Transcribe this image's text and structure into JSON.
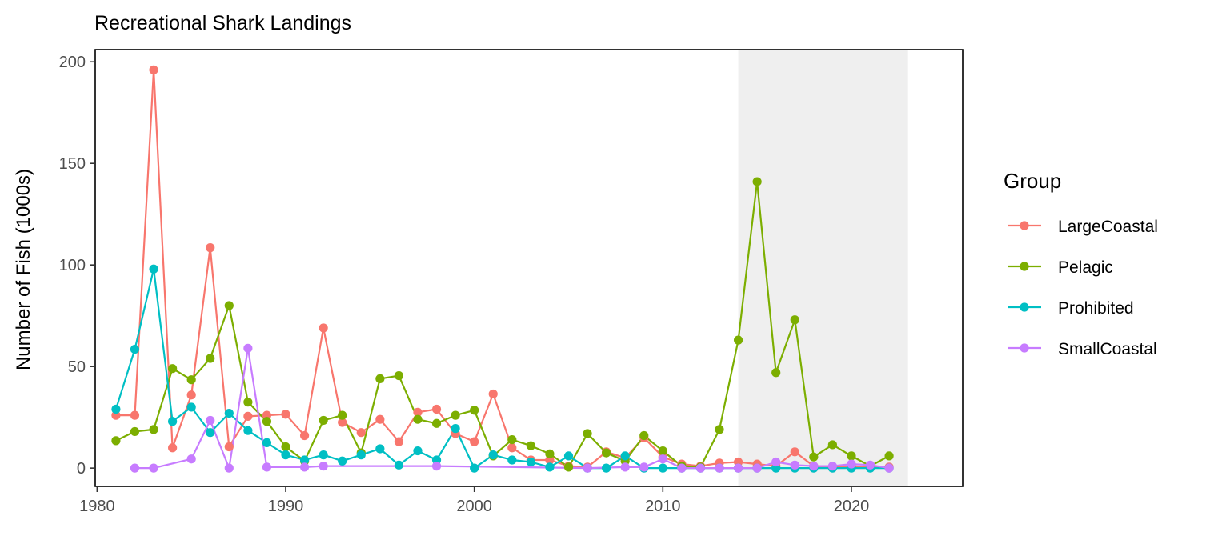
{
  "chart_data": {
    "type": "line",
    "title": "Recreational Shark Landings",
    "xlabel": "",
    "ylabel": "Number of Fish (1000s)",
    "xlim": [
      1979.9,
      2025.9
    ],
    "ylim": [
      -9.0,
      206.0
    ],
    "x_ticks": [
      1980,
      1990,
      2000,
      2010,
      2020
    ],
    "y_ticks": [
      0,
      50,
      100,
      150,
      200
    ],
    "shaded_region": [
      2014,
      2023
    ],
    "shaded_color": "#efefef",
    "grid": false,
    "legend": {
      "title": "Group",
      "placement": "right"
    },
    "series": [
      {
        "name": "LargeCoastal",
        "color": "#F8766D",
        "points": [
          [
            1981,
            26
          ],
          [
            1982,
            26
          ],
          [
            1983,
            196
          ],
          [
            1984,
            10
          ],
          [
            1985,
            36
          ],
          [
            1986,
            108.5
          ],
          [
            1987,
            10.5
          ],
          [
            1988,
            25.5
          ],
          [
            1989,
            26
          ],
          [
            1990,
            26.5
          ],
          [
            1991,
            16
          ],
          [
            1992,
            69
          ],
          [
            1993,
            22.5
          ],
          [
            1994,
            17.5
          ],
          [
            1995,
            24
          ],
          [
            1996,
            13
          ],
          [
            1997,
            27.5
          ],
          [
            1998,
            29
          ],
          [
            1999,
            17
          ],
          [
            2000,
            13
          ],
          [
            2001,
            36.5
          ],
          [
            2002,
            10
          ],
          [
            2003,
            4
          ],
          [
            2004,
            4
          ],
          [
            2005,
            1
          ],
          [
            2006,
            0.5
          ],
          [
            2007,
            8
          ],
          [
            2008,
            5
          ],
          [
            2009,
            15
          ],
          [
            2010,
            5.5
          ],
          [
            2011,
            2
          ],
          [
            2012,
            1
          ],
          [
            2013,
            2.5
          ],
          [
            2014,
            3
          ],
          [
            2015,
            2
          ],
          [
            2016,
            1
          ],
          [
            2017,
            8
          ],
          [
            2018,
            1
          ],
          [
            2019,
            0.5
          ],
          [
            2020,
            1
          ],
          [
            2021,
            0.5
          ],
          [
            2022,
            0.5
          ]
        ]
      },
      {
        "name": "Pelagic",
        "color": "#7CAE00",
        "points": [
          [
            1981,
            13.5
          ],
          [
            1982,
            18
          ],
          [
            1983,
            19
          ],
          [
            1984,
            49
          ],
          [
            1985,
            43.5
          ],
          [
            1986,
            54
          ],
          [
            1987,
            80
          ],
          [
            1988,
            32.5
          ],
          [
            1989,
            23
          ],
          [
            1990,
            10.5
          ],
          [
            1991,
            3.5
          ],
          [
            1992,
            23.5
          ],
          [
            1993,
            26
          ],
          [
            1994,
            7.5
          ],
          [
            1995,
            44
          ],
          [
            1996,
            45.5
          ],
          [
            1997,
            24
          ],
          [
            1998,
            22
          ],
          [
            1999,
            26
          ],
          [
            2000,
            28.5
          ],
          [
            2001,
            6
          ],
          [
            2002,
            14
          ],
          [
            2003,
            11
          ],
          [
            2004,
            7
          ],
          [
            2005,
            0.5
          ],
          [
            2006,
            17
          ],
          [
            2007,
            7.5
          ],
          [
            2008,
            3.5
          ],
          [
            2009,
            16
          ],
          [
            2010,
            8.5
          ],
          [
            2011,
            1
          ],
          [
            2012,
            0.5
          ],
          [
            2013,
            19
          ],
          [
            2014,
            63
          ],
          [
            2015,
            141
          ],
          [
            2016,
            47
          ],
          [
            2017,
            73
          ],
          [
            2018,
            5.5
          ],
          [
            2019,
            11.5
          ],
          [
            2020,
            6
          ],
          [
            2021,
            1
          ],
          [
            2022,
            6
          ]
        ]
      },
      {
        "name": "Prohibited",
        "color": "#00BFC4",
        "points": [
          [
            1981,
            29
          ],
          [
            1982,
            58.5
          ],
          [
            1983,
            98
          ],
          [
            1984,
            23
          ],
          [
            1985,
            30
          ],
          [
            1986,
            17.5
          ],
          [
            1987,
            27
          ],
          [
            1988,
            18.5
          ],
          [
            1989,
            12.5
          ],
          [
            1990,
            6.5
          ],
          [
            1991,
            4
          ],
          [
            1992,
            6.5
          ],
          [
            1993,
            3.5
          ],
          [
            1994,
            6.5
          ],
          [
            1995,
            9.5
          ],
          [
            1996,
            1.5
          ],
          [
            1997,
            8.5
          ],
          [
            1998,
            4
          ],
          [
            1999,
            19.5
          ],
          [
            2000,
            0
          ],
          [
            2001,
            6.5
          ],
          [
            2002,
            4
          ],
          [
            2003,
            3
          ],
          [
            2004,
            0.5
          ],
          [
            2005,
            6
          ],
          [
            2006,
            0
          ],
          [
            2007,
            0
          ],
          [
            2008,
            6
          ],
          [
            2009,
            0
          ],
          [
            2010,
            0
          ],
          [
            2011,
            0
          ],
          [
            2012,
            0
          ],
          [
            2013,
            0
          ],
          [
            2014,
            0
          ],
          [
            2015,
            0
          ],
          [
            2016,
            0
          ],
          [
            2017,
            0
          ],
          [
            2018,
            0
          ],
          [
            2019,
            0
          ],
          [
            2020,
            0
          ],
          [
            2021,
            0
          ],
          [
            2022,
            0
          ]
        ]
      },
      {
        "name": "SmallCoastal",
        "color": "#C77CFF",
        "points": [
          [
            1982,
            0
          ],
          [
            1983,
            0
          ],
          [
            1985,
            4.5
          ],
          [
            1986,
            23.5
          ],
          [
            1987,
            0
          ],
          [
            1988,
            59
          ],
          [
            1989,
            0.5
          ],
          [
            1991,
            0.5
          ],
          [
            1992,
            1
          ],
          [
            1998,
            1
          ],
          [
            2006,
            0
          ],
          [
            2008,
            0.5
          ],
          [
            2009,
            0.5
          ],
          [
            2010,
            4.5
          ],
          [
            2011,
            0
          ],
          [
            2012,
            0
          ],
          [
            2013,
            0
          ],
          [
            2014,
            0
          ],
          [
            2015,
            0
          ],
          [
            2016,
            3
          ],
          [
            2017,
            1.5
          ],
          [
            2018,
            1
          ],
          [
            2019,
            1
          ],
          [
            2020,
            2
          ],
          [
            2021,
            1.5
          ],
          [
            2022,
            0
          ]
        ]
      }
    ]
  }
}
